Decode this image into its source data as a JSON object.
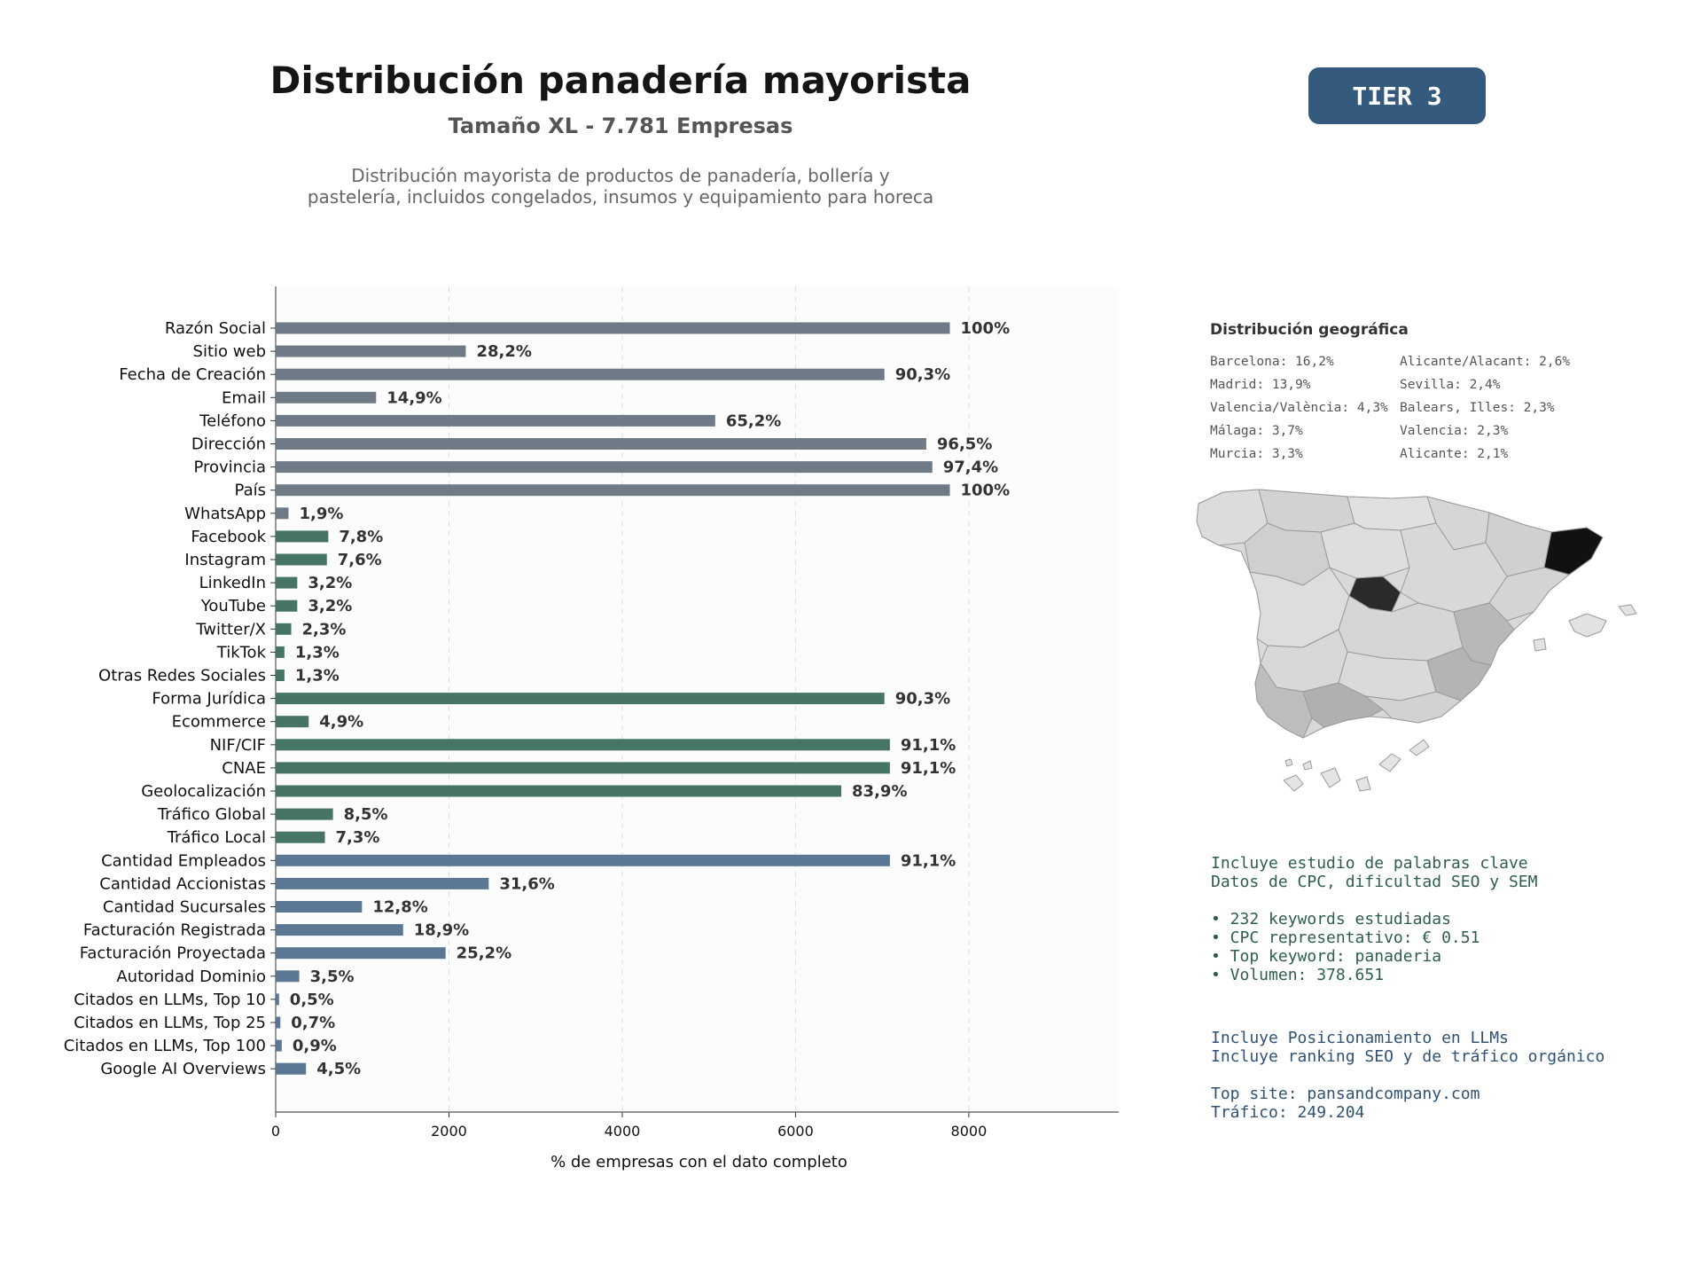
{
  "header": {
    "title": "Distribución panadería mayorista",
    "subtitle": "Tamaño XL - 7.781 Empresas",
    "description_lines": [
      "Distribución mayorista de productos de panadería, bollería y",
      "pastelería, incluidos congelados, insumos y equipamiento para horeca"
    ]
  },
  "badge": {
    "label": "TIER 3",
    "color": "#345a7e"
  },
  "chart_data": {
    "type": "bar",
    "orientation": "horizontal",
    "xlabel": "% de empresas con el dato completo",
    "xlim": [
      0,
      9730
    ],
    "xticks": [
      0,
      2000,
      4000,
      6000,
      8000
    ],
    "grid": "vertical dashed",
    "categories": [
      "Razón Social",
      "Sitio web",
      "Fecha de Creación",
      "Email",
      "Teléfono",
      "Dirección",
      "Provincia",
      "País",
      "WhatsApp",
      "Facebook",
      "Instagram",
      "LinkedIn",
      "YouTube",
      "Twitter/X",
      "TikTok",
      "Otras Redes Sociales",
      "Forma Jurídica",
      "Ecommerce",
      "NIF/CIF",
      "CNAE",
      "Geolocalización",
      "Tráfico Global",
      "Tráfico Local",
      "Cantidad Empleados",
      "Cantidad Accionistas",
      "Cantidad Sucursales",
      "Facturación Registrada",
      "Facturación Proyectada",
      "Autoridad Dominio",
      "Citados en LLMs, Top 10",
      "Citados en LLMs, Top 25",
      "Citados en LLMs, Top 100",
      "Google AI Overviews"
    ],
    "values": [
      7781,
      2194,
      7026,
      1159,
      5073,
      7509,
      7579,
      7781,
      148,
      607,
      591,
      249,
      249,
      179,
      101,
      101,
      7026,
      381,
      7089,
      7089,
      6528,
      661,
      568,
      7089,
      2459,
      996,
      1471,
      1961,
      272,
      39,
      54,
      70,
      350
    ],
    "labels": [
      "100%",
      "28,2%",
      "90,3%",
      "14,9%",
      "65,2%",
      "96,5%",
      "97,4%",
      "100%",
      "1,9%",
      "7,8%",
      "7,6%",
      "3,2%",
      "3,2%",
      "2,3%",
      "1,3%",
      "1,3%",
      "90,3%",
      "4,9%",
      "91,1%",
      "91,1%",
      "83,9%",
      "8,5%",
      "7,3%",
      "91,1%",
      "31,6%",
      "12,8%",
      "18,9%",
      "25,2%",
      "3,5%",
      "0,5%",
      "0,7%",
      "0,9%",
      "4,5%"
    ],
    "groups": [
      "gray",
      "gray",
      "gray",
      "gray",
      "gray",
      "gray",
      "gray",
      "gray",
      "gray",
      "green",
      "green",
      "green",
      "green",
      "green",
      "green",
      "green",
      "green",
      "green",
      "green",
      "green",
      "green",
      "green",
      "green",
      "blue",
      "blue",
      "blue",
      "blue",
      "blue",
      "blue",
      "blue",
      "blue",
      "blue",
      "blue"
    ],
    "colors": {
      "gray": "#6e7b86",
      "green": "#467564",
      "blue": "#5a7894"
    }
  },
  "geo": {
    "title": "Distribución geográfica",
    "items": [
      "Barcelona: 16,2%",
      "Alicante/Alacant: 2,6%",
      "Madrid: 13,9%",
      "Sevilla: 2,4%",
      "Valencia/València: 4,3%",
      "Balears, Illes: 2,3%",
      "Málaga: 3,7%",
      "Valencia: 2,3%",
      "Murcia: 3,3%",
      "Alicante: 2,1%"
    ]
  },
  "keywords": {
    "lines": [
      "Incluye estudio de palabras clave",
      "Datos de CPC, dificultad SEO y SEM",
      "",
      "• 232 keywords estudiadas",
      "• CPC representativo: € 0.51",
      "• Top keyword: panaderia",
      "• Volumen: 378.651"
    ],
    "color": "#2e5e4e"
  },
  "llm": {
    "lines": [
      "Incluye Posicionamiento en LLMs",
      "Incluye ranking SEO y de tráfico orgánico",
      "",
      "Top site: pansandcompany.com",
      "Tráfico: 249.204"
    ],
    "color": "#2f5273"
  }
}
